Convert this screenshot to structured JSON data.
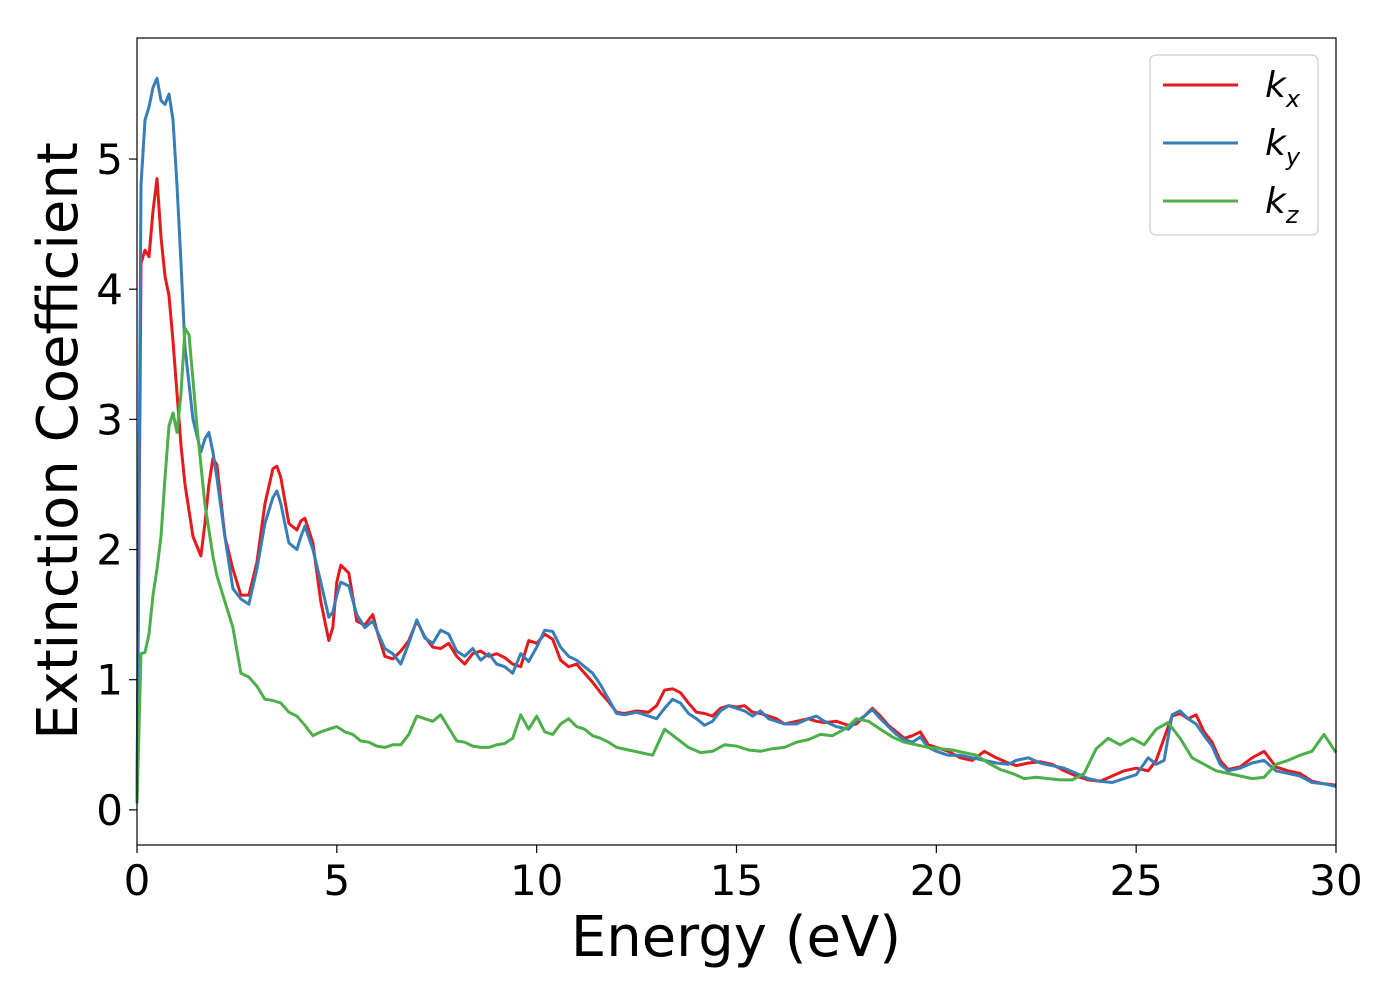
{
  "chart_data": {
    "type": "line",
    "xlabel": "Energy (eV)",
    "ylabel": "Extinction Coefficient",
    "xlim": [
      0,
      30
    ],
    "ylim": [
      -0.27,
      5.93
    ],
    "xticks": [
      0,
      5,
      10,
      15,
      20,
      25,
      30
    ],
    "yticks": [
      0,
      1,
      2,
      3,
      4,
      5
    ],
    "grid": false,
    "legend_position": "top-right",
    "series": [
      {
        "name": "k_x",
        "label_base": "k",
        "label_sub": "x",
        "color": "#e41a1c",
        "x": [
          0,
          0.1,
          0.2,
          0.3,
          0.4,
          0.5,
          0.6,
          0.7,
          0.8,
          0.9,
          1.0,
          1.1,
          1.2,
          1.4,
          1.6,
          1.7,
          1.8,
          1.9,
          2.0,
          2.2,
          2.4,
          2.6,
          2.8,
          3.0,
          3.2,
          3.4,
          3.5,
          3.6,
          3.8,
          4.0,
          4.1,
          4.2,
          4.4,
          4.6,
          4.8,
          4.9,
          5.0,
          5.1,
          5.3,
          5.5,
          5.7,
          5.9,
          6.0,
          6.2,
          6.4,
          6.6,
          6.8,
          7.0,
          7.2,
          7.4,
          7.6,
          7.8,
          8.0,
          8.2,
          8.4,
          8.6,
          8.8,
          9.0,
          9.2,
          9.4,
          9.6,
          9.8,
          10.0,
          10.2,
          10.4,
          10.6,
          10.8,
          11.0,
          11.2,
          11.4,
          11.6,
          11.8,
          12.0,
          12.2,
          12.5,
          12.8,
          13.0,
          13.2,
          13.4,
          13.6,
          13.8,
          14.0,
          14.2,
          14.4,
          14.6,
          14.8,
          15.0,
          15.2,
          15.4,
          15.6,
          15.8,
          16.0,
          16.2,
          16.5,
          16.8,
          17.0,
          17.2,
          17.5,
          17.8,
          18.0,
          18.2,
          18.4,
          18.6,
          18.8,
          19.0,
          19.2,
          19.4,
          19.6,
          19.8,
          20.0,
          20.3,
          20.6,
          20.9,
          21.2,
          21.5,
          21.8,
          22.0,
          22.3,
          22.6,
          22.9,
          23.2,
          23.5,
          23.8,
          24.1,
          24.4,
          24.7,
          25.0,
          25.3,
          25.5,
          25.7,
          25.9,
          26.1,
          26.3,
          26.5,
          26.7,
          26.9,
          27.1,
          27.3,
          27.6,
          27.9,
          28.2,
          28.5,
          28.8,
          29.1,
          29.4,
          29.7,
          30.0
        ],
        "y": [
          0.05,
          4.2,
          4.3,
          4.25,
          4.6,
          4.85,
          4.4,
          4.1,
          3.95,
          3.6,
          3.2,
          2.8,
          2.5,
          2.1,
          1.95,
          2.2,
          2.5,
          2.7,
          2.65,
          2.1,
          1.85,
          1.65,
          1.65,
          1.9,
          2.35,
          2.62,
          2.64,
          2.55,
          2.2,
          2.15,
          2.22,
          2.24,
          2.05,
          1.6,
          1.3,
          1.4,
          1.75,
          1.88,
          1.82,
          1.45,
          1.42,
          1.5,
          1.38,
          1.18,
          1.16,
          1.22,
          1.3,
          1.45,
          1.33,
          1.25,
          1.24,
          1.28,
          1.18,
          1.12,
          1.2,
          1.22,
          1.18,
          1.2,
          1.17,
          1.12,
          1.1,
          1.3,
          1.28,
          1.35,
          1.31,
          1.15,
          1.1,
          1.12,
          1.05,
          0.98,
          0.9,
          0.83,
          0.75,
          0.74,
          0.76,
          0.75,
          0.8,
          0.92,
          0.93,
          0.9,
          0.82,
          0.75,
          0.74,
          0.72,
          0.78,
          0.8,
          0.79,
          0.8,
          0.75,
          0.74,
          0.72,
          0.7,
          0.66,
          0.68,
          0.7,
          0.68,
          0.67,
          0.68,
          0.65,
          0.66,
          0.72,
          0.78,
          0.72,
          0.65,
          0.6,
          0.55,
          0.57,
          0.6,
          0.5,
          0.48,
          0.45,
          0.4,
          0.38,
          0.45,
          0.4,
          0.36,
          0.34,
          0.36,
          0.37,
          0.35,
          0.3,
          0.26,
          0.23,
          0.22,
          0.26,
          0.3,
          0.32,
          0.3,
          0.38,
          0.55,
          0.72,
          0.74,
          0.7,
          0.73,
          0.6,
          0.52,
          0.38,
          0.31,
          0.33,
          0.4,
          0.45,
          0.33,
          0.3,
          0.28,
          0.22,
          0.2,
          0.19
        ]
      },
      {
        "name": "k_y",
        "label_base": "k",
        "label_sub": "y",
        "color": "#377eb8",
        "x": [
          0,
          0.1,
          0.2,
          0.3,
          0.4,
          0.5,
          0.6,
          0.7,
          0.8,
          0.9,
          1.0,
          1.1,
          1.2,
          1.4,
          1.6,
          1.7,
          1.8,
          1.9,
          2.0,
          2.2,
          2.4,
          2.6,
          2.8,
          3.0,
          3.2,
          3.4,
          3.5,
          3.6,
          3.8,
          4.0,
          4.1,
          4.2,
          4.4,
          4.6,
          4.8,
          4.9,
          5.0,
          5.1,
          5.3,
          5.5,
          5.7,
          5.9,
          6.0,
          6.2,
          6.4,
          6.6,
          6.8,
          7.0,
          7.2,
          7.4,
          7.6,
          7.8,
          8.0,
          8.2,
          8.4,
          8.6,
          8.8,
          9.0,
          9.2,
          9.4,
          9.6,
          9.8,
          10.0,
          10.2,
          10.4,
          10.6,
          10.8,
          11.0,
          11.2,
          11.4,
          11.6,
          11.8,
          12.0,
          12.2,
          12.5,
          12.8,
          13.0,
          13.2,
          13.4,
          13.6,
          13.8,
          14.0,
          14.2,
          14.4,
          14.6,
          14.8,
          15.0,
          15.2,
          15.4,
          15.6,
          15.8,
          16.0,
          16.2,
          16.5,
          16.8,
          17.0,
          17.2,
          17.5,
          17.8,
          18.0,
          18.2,
          18.4,
          18.6,
          18.8,
          19.0,
          19.2,
          19.4,
          19.6,
          19.8,
          20.0,
          20.3,
          20.6,
          20.9,
          21.2,
          21.5,
          21.8,
          22.0,
          22.3,
          22.6,
          22.9,
          23.2,
          23.5,
          23.8,
          24.1,
          24.4,
          24.7,
          25.0,
          25.3,
          25.5,
          25.7,
          25.9,
          26.1,
          26.3,
          26.5,
          26.7,
          26.9,
          27.1,
          27.3,
          27.6,
          27.9,
          28.2,
          28.5,
          28.8,
          29.1,
          29.4,
          29.7,
          30.0
        ],
        "y": [
          0.05,
          4.8,
          5.3,
          5.4,
          5.55,
          5.62,
          5.45,
          5.42,
          5.5,
          5.3,
          4.8,
          4.2,
          3.55,
          3.0,
          2.75,
          2.85,
          2.9,
          2.75,
          2.55,
          2.1,
          1.7,
          1.62,
          1.58,
          1.85,
          2.2,
          2.4,
          2.45,
          2.35,
          2.05,
          2.0,
          2.1,
          2.18,
          2.0,
          1.75,
          1.48,
          1.52,
          1.65,
          1.75,
          1.72,
          1.5,
          1.4,
          1.45,
          1.38,
          1.24,
          1.2,
          1.12,
          1.28,
          1.46,
          1.32,
          1.28,
          1.38,
          1.35,
          1.22,
          1.18,
          1.24,
          1.15,
          1.2,
          1.12,
          1.1,
          1.05,
          1.2,
          1.14,
          1.25,
          1.38,
          1.37,
          1.25,
          1.18,
          1.15,
          1.1,
          1.05,
          0.96,
          0.85,
          0.74,
          0.73,
          0.75,
          0.72,
          0.7,
          0.78,
          0.85,
          0.82,
          0.74,
          0.7,
          0.65,
          0.68,
          0.76,
          0.8,
          0.78,
          0.76,
          0.72,
          0.76,
          0.7,
          0.68,
          0.66,
          0.66,
          0.7,
          0.72,
          0.68,
          0.64,
          0.62,
          0.68,
          0.72,
          0.77,
          0.7,
          0.64,
          0.58,
          0.54,
          0.52,
          0.56,
          0.48,
          0.45,
          0.42,
          0.42,
          0.4,
          0.38,
          0.36,
          0.35,
          0.38,
          0.4,
          0.36,
          0.34,
          0.32,
          0.28,
          0.24,
          0.22,
          0.21,
          0.24,
          0.27,
          0.4,
          0.35,
          0.38,
          0.73,
          0.76,
          0.7,
          0.66,
          0.57,
          0.49,
          0.35,
          0.3,
          0.32,
          0.36,
          0.38,
          0.3,
          0.28,
          0.26,
          0.21,
          0.2,
          0.18
        ]
      },
      {
        "name": "k_z",
        "label_base": "k",
        "label_sub": "z",
        "color": "#4daf4a",
        "x": [
          0,
          0.1,
          0.2,
          0.3,
          0.4,
          0.5,
          0.6,
          0.7,
          0.8,
          0.9,
          1.0,
          1.1,
          1.2,
          1.3,
          1.4,
          1.5,
          1.6,
          1.7,
          1.8,
          1.9,
          2.0,
          2.2,
          2.4,
          2.6,
          2.8,
          3.0,
          3.2,
          3.4,
          3.6,
          3.8,
          4.0,
          4.2,
          4.4,
          4.6,
          4.8,
          5.0,
          5.2,
          5.4,
          5.6,
          5.8,
          6.0,
          6.2,
          6.4,
          6.6,
          6.8,
          7.0,
          7.2,
          7.4,
          7.6,
          7.8,
          8.0,
          8.2,
          8.4,
          8.6,
          8.8,
          9.0,
          9.2,
          9.4,
          9.6,
          9.8,
          10.0,
          10.2,
          10.4,
          10.6,
          10.8,
          11.0,
          11.2,
          11.4,
          11.6,
          11.8,
          12.0,
          12.3,
          12.6,
          12.9,
          13.2,
          13.5,
          13.8,
          14.1,
          14.4,
          14.7,
          15.0,
          15.3,
          15.6,
          15.9,
          16.2,
          16.5,
          16.8,
          17.1,
          17.4,
          17.7,
          18.0,
          18.3,
          18.6,
          18.9,
          19.2,
          19.5,
          19.8,
          20.1,
          20.4,
          20.7,
          21.0,
          21.3,
          21.6,
          21.9,
          22.2,
          22.5,
          22.8,
          23.1,
          23.4,
          23.7,
          24.0,
          24.3,
          24.6,
          24.9,
          25.2,
          25.5,
          25.8,
          26.1,
          26.4,
          26.7,
          27.0,
          27.3,
          27.6,
          27.9,
          28.2,
          28.5,
          28.8,
          29.1,
          29.4,
          29.7,
          30.0
        ],
        "y": [
          0.05,
          1.2,
          1.21,
          1.35,
          1.65,
          1.85,
          2.1,
          2.55,
          2.95,
          3.05,
          2.9,
          3.2,
          3.7,
          3.65,
          3.3,
          2.95,
          2.65,
          2.35,
          2.15,
          1.95,
          1.8,
          1.6,
          1.4,
          1.05,
          1.02,
          0.95,
          0.85,
          0.84,
          0.82,
          0.75,
          0.72,
          0.65,
          0.57,
          0.6,
          0.62,
          0.64,
          0.6,
          0.58,
          0.53,
          0.52,
          0.49,
          0.48,
          0.5,
          0.5,
          0.58,
          0.72,
          0.7,
          0.68,
          0.73,
          0.63,
          0.53,
          0.52,
          0.49,
          0.48,
          0.48,
          0.5,
          0.51,
          0.55,
          0.73,
          0.62,
          0.72,
          0.6,
          0.58,
          0.66,
          0.7,
          0.64,
          0.62,
          0.57,
          0.55,
          0.52,
          0.48,
          0.46,
          0.44,
          0.42,
          0.62,
          0.55,
          0.48,
          0.44,
          0.45,
          0.5,
          0.49,
          0.46,
          0.45,
          0.47,
          0.48,
          0.52,
          0.54,
          0.58,
          0.57,
          0.62,
          0.7,
          0.68,
          0.62,
          0.56,
          0.52,
          0.5,
          0.48,
          0.47,
          0.46,
          0.44,
          0.42,
          0.36,
          0.31,
          0.28,
          0.24,
          0.25,
          0.24,
          0.23,
          0.23,
          0.28,
          0.47,
          0.55,
          0.5,
          0.55,
          0.5,
          0.62,
          0.67,
          0.55,
          0.4,
          0.35,
          0.3,
          0.28,
          0.26,
          0.24,
          0.25,
          0.35,
          0.38,
          0.42,
          0.45,
          0.58,
          0.44
        ]
      }
    ]
  }
}
